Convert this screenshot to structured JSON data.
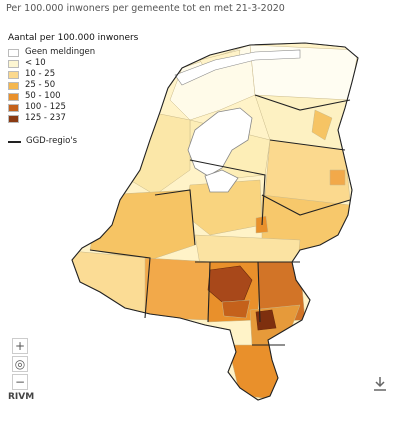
{
  "title": "Per 100.000 inwoners per gemeente tot en met 21-3-2020",
  "legend": {
    "title": "Aantal per 100.000 inwoners",
    "items": [
      {
        "label": "Geen meldingen",
        "color": "#ffffff"
      },
      {
        "label": "< 10",
        "color": "#fdf6d2"
      },
      {
        "label": "10 - 25",
        "color": "#fbd98e"
      },
      {
        "label": "25 - 50",
        "color": "#f5b74e"
      },
      {
        "label": "50 - 100",
        "color": "#e9902b"
      },
      {
        "label": "100 - 125",
        "color": "#c4611b"
      },
      {
        "label": "125 - 237",
        "color": "#8a3a12"
      }
    ],
    "boundary_label": "GGD-regio's"
  },
  "controls": {
    "zoom_in": "+",
    "reset": "◎",
    "zoom_out": "−"
  },
  "brand": "RIVM"
}
